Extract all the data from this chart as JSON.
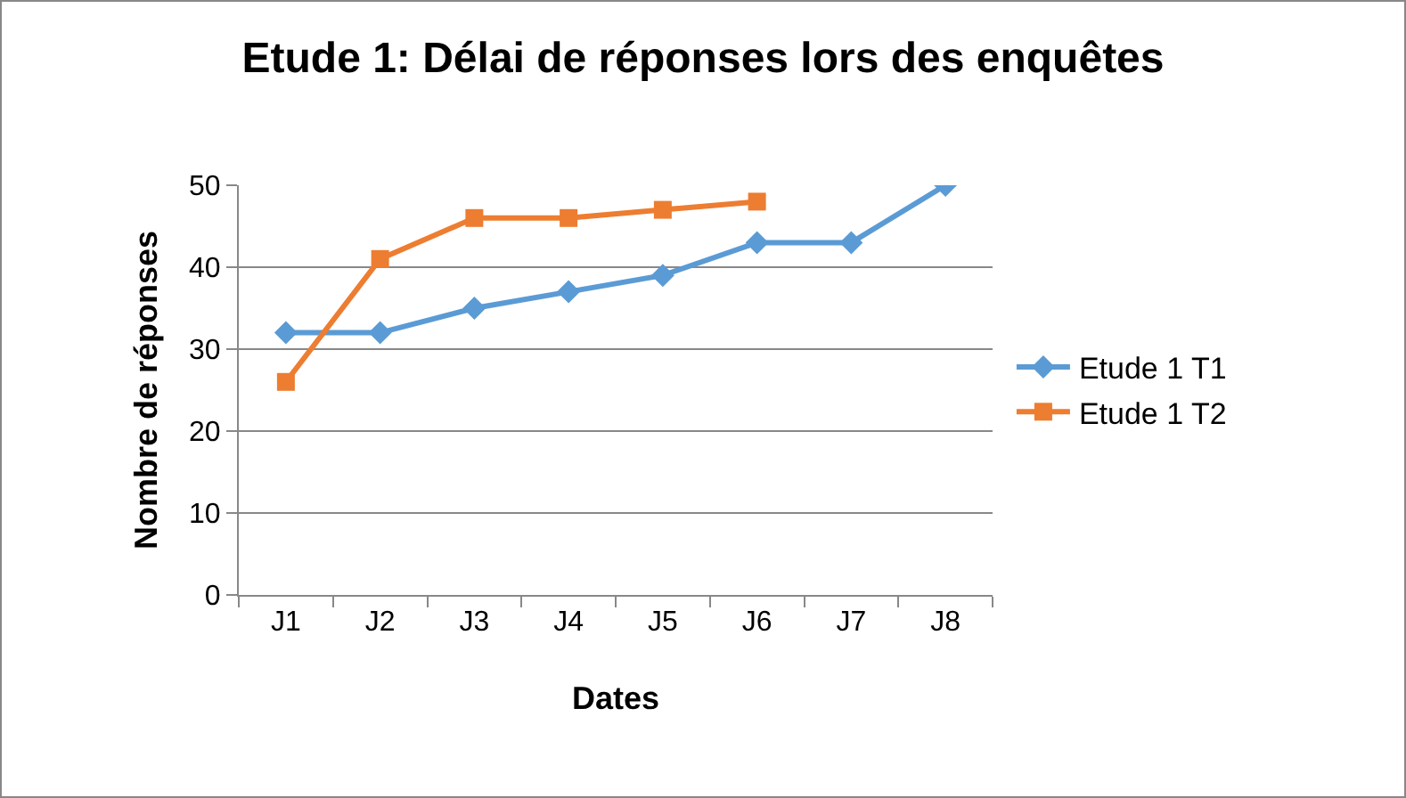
{
  "chart_data": {
    "type": "line",
    "title": "Etude 1: Délai de réponses lors des enquêtes",
    "xlabel": "Dates",
    "ylabel": "Nombre de réponses",
    "categories": [
      "J1",
      "J2",
      "J3",
      "J4",
      "J5",
      "J6",
      "J7",
      "J8"
    ],
    "series": [
      {
        "name": "Etude 1 T1",
        "color": "#5b9bd5",
        "marker": "diamond",
        "values": [
          32,
          32,
          35,
          37,
          39,
          43,
          43,
          50
        ]
      },
      {
        "name": "Etude 1 T2",
        "color": "#ed7d31",
        "marker": "square",
        "values": [
          26,
          41,
          46,
          46,
          47,
          48,
          null,
          null
        ]
      }
    ],
    "ylim": [
      0,
      50
    ],
    "yticks": [
      0,
      10,
      20,
      30,
      40,
      50
    ],
    "grid": "y",
    "legend": "right",
    "line_style": "solid"
  }
}
